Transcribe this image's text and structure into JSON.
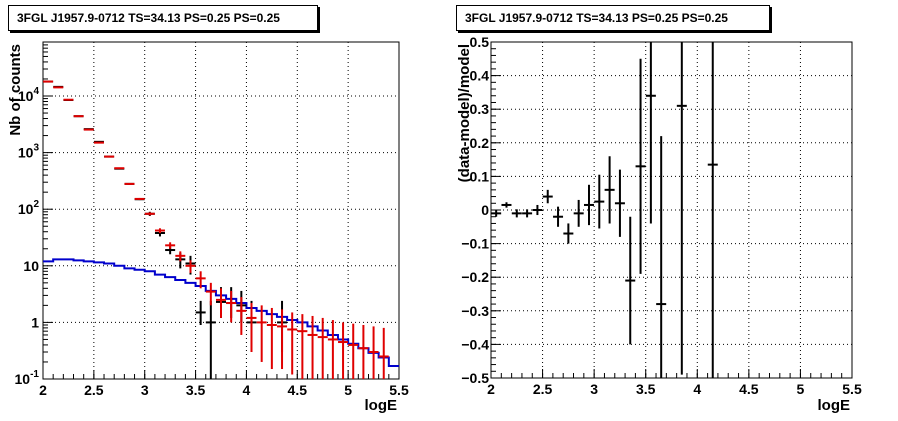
{
  "chart_data": [
    {
      "type": "line",
      "title": "3FGL J1957.9-0712 TS=34.13 PS=0.25 PS=0.25",
      "xlabel": "logE",
      "ylabel": "Nb of counts",
      "xlim": [
        2,
        5.5
      ],
      "ylim": [
        0.1,
        90000
      ],
      "yscale": "log",
      "grid": true,
      "x_ticks": [
        "2",
        "2.5",
        "3",
        "3.5",
        "4",
        "4.5",
        "5",
        "5.5"
      ],
      "y_ticks": [
        {
          "value": 0.1,
          "label": "10",
          "exp": "-1"
        },
        {
          "value": 1,
          "label": "1",
          "exp": ""
        },
        {
          "value": 10,
          "label": "10",
          "exp": ""
        },
        {
          "value": 100,
          "label": "10",
          "exp": "2"
        },
        {
          "value": 1000,
          "label": "10",
          "exp": "3"
        },
        {
          "value": 10000,
          "label": "10",
          "exp": "4"
        }
      ],
      "series": [
        {
          "role": "data",
          "color": "#000000",
          "x": [
            2.05,
            2.15,
            2.25,
            2.35,
            2.45,
            2.55,
            2.65,
            2.75,
            2.85,
            2.95,
            3.05,
            3.15,
            3.25,
            3.35,
            3.45,
            3.55,
            3.65,
            3.75,
            3.85,
            3.95,
            4.05,
            4.15,
            4.25,
            4.35,
            4.45,
            4.55,
            4.65,
            4.75,
            4.85,
            4.95,
            5.05,
            5.15,
            5.25,
            5.35
          ],
          "y": [
            18000,
            14500,
            8500,
            4400,
            2600,
            1550,
            850,
            520,
            280,
            150,
            83,
            38,
            19,
            13,
            11,
            1.5,
            1,
            2.3,
            2.2,
            2,
            1,
            0.1,
            0.1,
            1,
            0.1,
            0.1,
            0.1,
            0.1,
            0.1,
            0.1,
            0.1,
            0.1,
            0.1,
            0.1
          ],
          "y_low": [
            17900,
            14400,
            8400,
            4350,
            2550,
            1520,
            830,
            505,
            270,
            145,
            76,
            33,
            16,
            9,
            7,
            0.9,
            0.1,
            1.2,
            1.2,
            1.0,
            0.3,
            0.1,
            0.1,
            0.3,
            0.1,
            0.1,
            0.1,
            0.1,
            0.1,
            0.1,
            0.1,
            0.1,
            0.1,
            0.1
          ],
          "y_high": [
            18100,
            14600,
            8600,
            4450,
            2650,
            1580,
            870,
            535,
            290,
            155,
            90,
            43,
            22,
            17,
            15,
            2.4,
            2.4,
            4.2,
            4.2,
            3.6,
            2.4,
            0.1,
            0.1,
            2.4,
            0.1,
            0.1,
            0.1,
            0.1,
            0.1,
            0.1,
            0.1,
            0.1,
            0.1,
            0.1
          ]
        },
        {
          "role": "model",
          "color": "#e00000",
          "x": [
            2.05,
            2.15,
            2.25,
            2.35,
            2.45,
            2.55,
            2.65,
            2.75,
            2.85,
            2.95,
            3.05,
            3.15,
            3.25,
            3.35,
            3.45,
            3.55,
            3.65,
            3.75,
            3.85,
            3.95,
            4.05,
            4.15,
            4.25,
            4.35,
            4.45,
            4.55,
            4.65,
            4.75,
            4.85,
            4.95,
            5.05,
            5.15,
            5.25,
            5.35
          ],
          "y": [
            18000,
            14200,
            8600,
            4400,
            2550,
            1500,
            850,
            530,
            280,
            152,
            83,
            42,
            23,
            15,
            10,
            6,
            3.5,
            2.5,
            2.2,
            1.6,
            1.2,
            1,
            0.9,
            0.85,
            0.75,
            0.7,
            0.6,
            0.55,
            0.5,
            0.45,
            0.4,
            0.35,
            0.3,
            0.25
          ],
          "y_low": [
            17900,
            14100,
            8500,
            4350,
            2500,
            1470,
            830,
            515,
            270,
            146,
            78,
            38,
            20,
            12,
            7.5,
            4,
            2,
            1.2,
            1.0,
            0.6,
            0.3,
            0.2,
            0.15,
            0.15,
            0.12,
            0.1,
            0.1,
            0.1,
            0.1,
            0.1,
            0.1,
            0.1,
            0.1,
            0.1
          ],
          "y_high": [
            18100,
            14300,
            8700,
            4450,
            2600,
            1530,
            870,
            545,
            290,
            158,
            88,
            46,
            26,
            18,
            12.5,
            8,
            5,
            4,
            3.6,
            2.8,
            2.2,
            2,
            1.8,
            1.7,
            1.5,
            1.4,
            1.3,
            1.2,
            1.1,
            1.0,
            0.95,
            0.9,
            0.85,
            0.8
          ]
        },
        {
          "role": "background",
          "color": "#0000cc",
          "step_edges": [
            2.0,
            2.1,
            2.2,
            2.3,
            2.4,
            2.5,
            2.6,
            2.7,
            2.8,
            2.9,
            3.0,
            3.1,
            3.2,
            3.3,
            3.4,
            3.5,
            3.6,
            3.7,
            3.8,
            3.9,
            4.0,
            4.1,
            4.2,
            4.3,
            4.4,
            4.5,
            4.6,
            4.7,
            4.8,
            4.9,
            5.0,
            5.1,
            5.2,
            5.3,
            5.4,
            5.5
          ],
          "y": [
            12,
            13,
            13,
            12.5,
            12,
            11.5,
            11,
            10,
            9,
            8.5,
            8,
            7,
            6.3,
            5.6,
            5,
            4.4,
            3.6,
            3,
            2.6,
            2.2,
            1.8,
            1.6,
            1.4,
            1.25,
            1.1,
            1,
            0.85,
            0.72,
            0.6,
            0.5,
            0.42,
            0.35,
            0.29,
            0.24,
            0.17
          ]
        }
      ]
    },
    {
      "type": "scatter",
      "title": "3FGL J1957.9-0712 TS=34.13 PS=0.25 PS=0.25",
      "xlabel": "logE",
      "ylabel": "(data-model)/model",
      "xlim": [
        2,
        5.5
      ],
      "ylim": [
        -0.5,
        0.5
      ],
      "grid": true,
      "x_ticks": [
        "2",
        "2.5",
        "3",
        "3.5",
        "4",
        "4.5",
        "5",
        "5.5"
      ],
      "y_ticks": [
        "−0.5",
        "−0.4",
        "−0.3",
        "−0.2",
        "−0.1",
        "0",
        "0.1",
        "0.2",
        "0.3",
        "0.4",
        "0.5"
      ],
      "points": {
        "x": [
          2.05,
          2.15,
          2.25,
          2.35,
          2.45,
          2.55,
          2.65,
          2.75,
          2.85,
          2.95,
          3.05,
          3.15,
          3.25,
          3.35,
          3.45,
          3.55,
          3.65,
          3.85,
          4.15
        ],
        "y": [
          -0.01,
          0.015,
          -0.01,
          -0.01,
          0.0,
          0.04,
          -0.02,
          -0.07,
          -0.01,
          0.015,
          0.025,
          0.06,
          0.02,
          -0.21,
          0.13,
          0.34,
          -0.28,
          0.31,
          0.135
        ],
        "err": [
          0.01,
          0.008,
          0.012,
          0.012,
          0.015,
          0.02,
          0.03,
          0.03,
          0.04,
          0.06,
          0.08,
          0.1,
          0.1,
          0.19,
          0.32,
          0.38,
          0.5,
          0.8,
          0.8
        ]
      },
      "color": "#000000"
    }
  ]
}
